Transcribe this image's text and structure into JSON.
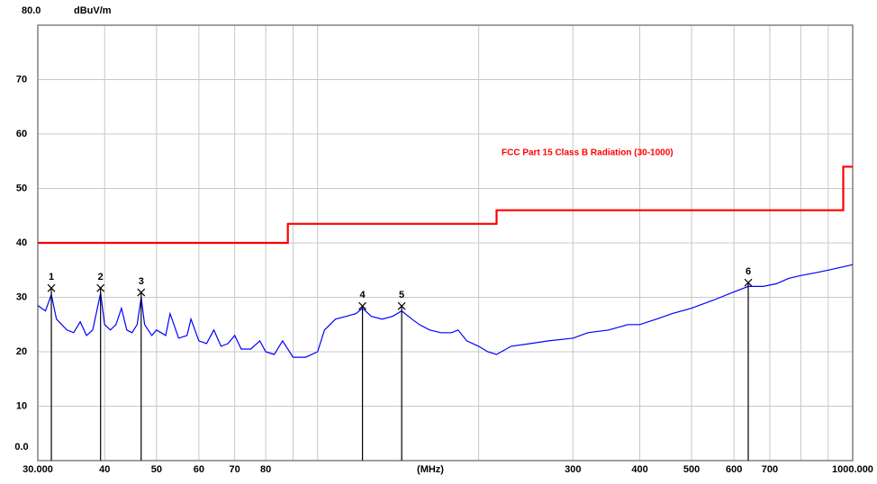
{
  "chart_data": {
    "type": "line",
    "y_label": "dBuV/m",
    "x_label": "(MHz)",
    "xscale": "log",
    "grid": true,
    "xlim": [
      30,
      1000
    ],
    "ylim": [
      0,
      80
    ],
    "yticks": [
      {
        "value": 0,
        "label": "0.0"
      },
      10,
      20,
      30,
      40,
      50,
      60,
      70,
      {
        "value": 80,
        "label": "80.0"
      }
    ],
    "xticks": [
      {
        "value": 30,
        "label": "30.000"
      },
      40,
      50,
      60,
      70,
      80,
      300,
      400,
      500,
      600,
      700,
      {
        "value": 1000,
        "label": "1000.000"
      }
    ],
    "xgrid": [
      40,
      50,
      60,
      70,
      80,
      90,
      100,
      200,
      300,
      400,
      500,
      600,
      700,
      800,
      900
    ],
    "series": [
      {
        "name": "FCC Part 15 Class B Radiation (30-1000)",
        "color": "#ff0000",
        "x": [
          30,
          88,
          88,
          216,
          216,
          960,
          960,
          1000
        ],
        "values": [
          40,
          40,
          43.5,
          43.5,
          46,
          46,
          54,
          54
        ]
      },
      {
        "color": "#0000ff",
        "x": [
          30,
          31,
          31.8,
          32.5,
          34,
          35,
          36,
          37,
          38,
          39.3,
          40,
          41,
          42,
          43,
          44,
          45,
          46,
          46.8,
          47.5,
          49,
          50,
          52,
          53,
          55,
          57,
          58,
          60,
          62,
          64,
          66,
          68,
          70,
          72,
          75,
          78,
          80,
          83,
          86,
          90,
          95,
          100,
          103,
          108,
          113,
          118,
          121.3,
          126,
          132,
          138,
          143.6,
          150,
          155,
          162,
          170,
          178,
          183,
          190,
          200,
          208,
          216,
          230,
          250,
          270,
          300,
          320,
          350,
          380,
          400,
          430,
          460,
          500,
          550,
          600,
          638,
          680,
          720,
          760,
          800,
          850,
          900,
          950,
          1000
        ],
        "values": [
          28.5,
          27.5,
          30.5,
          26,
          24,
          23.5,
          25.5,
          23,
          24,
          30.8,
          25,
          24,
          25,
          28,
          24,
          23.5,
          25,
          30,
          25,
          23,
          24,
          23,
          27,
          22.5,
          23,
          26,
          22,
          21.5,
          24,
          21,
          21.5,
          23,
          20.5,
          20.5,
          22,
          20,
          19.5,
          22,
          19,
          19,
          20,
          24,
          26,
          26.5,
          27,
          28,
          26.5,
          26,
          26.5,
          27.5,
          26,
          25,
          24,
          23.5,
          23.5,
          24,
          22,
          21,
          20,
          19.5,
          21,
          21.5,
          22,
          22.5,
          23.5,
          24,
          25,
          25,
          26,
          27,
          28,
          29.5,
          31,
          32,
          32,
          32.5,
          33.5,
          34,
          34.5,
          35,
          35.5,
          36
        ]
      }
    ],
    "markers": {
      "color": "#000000",
      "labels": [
        "1",
        "2",
        "3",
        "4",
        "5",
        "6"
      ],
      "x": [
        31.8,
        39.3,
        46.8,
        121.3,
        143.6,
        638
      ],
      "values": [
        31.7,
        31.7,
        30.9,
        28.4,
        28.4,
        32.7
      ]
    }
  }
}
